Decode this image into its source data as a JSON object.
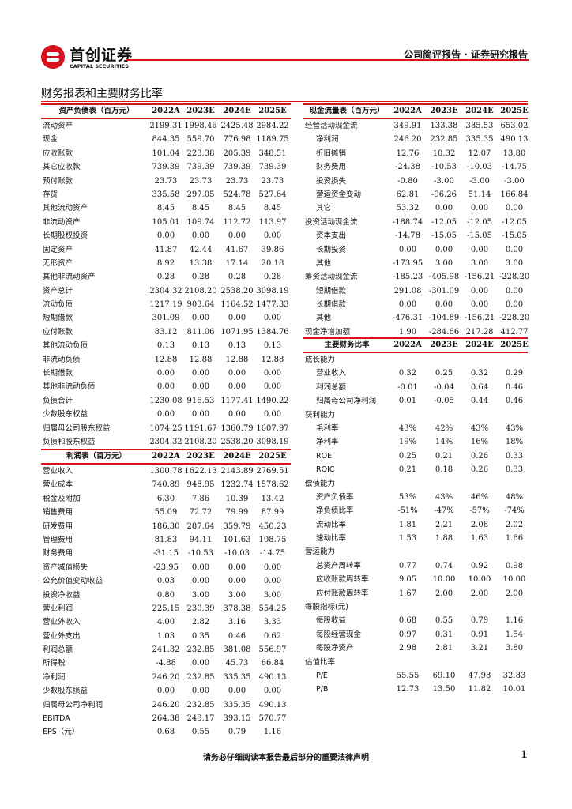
{
  "header": {
    "logo_cn": "首创证券",
    "logo_en": "CAPITAL SECURITIES",
    "report_type": "公司简评报告 · 证券研究报告",
    "accent_color": "#d7121b"
  },
  "section_title": "财务报表和主要财务比率",
  "tables": {
    "balance": {
      "header": [
        "资产负债表（百万元）",
        "2022A",
        "2023E",
        "2024E",
        "2025E"
      ],
      "rows": [
        [
          "流动资产",
          "2199.31",
          "1998.46",
          "2425.48",
          "2984.22"
        ],
        [
          "现金",
          "844.35",
          "559.70",
          "776.98",
          "1189.75"
        ],
        [
          "应收账款",
          "101.04",
          "223.38",
          "205.39",
          "348.51"
        ],
        [
          "其它应收款",
          "739.39",
          "739.39",
          "739.39",
          "739.39"
        ],
        [
          "预付账款",
          "23.73",
          "23.73",
          "23.73",
          "23.73"
        ],
        [
          "存货",
          "335.58",
          "297.05",
          "524.78",
          "527.64"
        ],
        [
          "其他流动资产",
          "8.45",
          "8.45",
          "8.45",
          "8.45"
        ],
        [
          "非流动资产",
          "105.01",
          "109.74",
          "112.72",
          "113.97"
        ],
        [
          "长期股权投资",
          "0.00",
          "0.00",
          "0.00",
          "0.00"
        ],
        [
          "固定资产",
          "41.87",
          "42.44",
          "41.67",
          "39.86"
        ],
        [
          "无形资产",
          "8.92",
          "13.38",
          "17.14",
          "20.18"
        ],
        [
          "其他非流动资产",
          "0.28",
          "0.28",
          "0.28",
          "0.28"
        ],
        [
          "资产总计",
          "2304.32",
          "2108.20",
          "2538.20",
          "3098.19"
        ],
        [
          "流动负债",
          "1217.19",
          "903.64",
          "1164.52",
          "1477.33"
        ],
        [
          "短期借款",
          "301.09",
          "0.00",
          "0.00",
          "0.00"
        ],
        [
          "应付账款",
          "83.12",
          "811.06",
          "1071.95",
          "1384.76"
        ],
        [
          "其他流动负债",
          "0.13",
          "0.13",
          "0.13",
          "0.13"
        ],
        [
          "非流动负债",
          "12.88",
          "12.88",
          "12.88",
          "12.88"
        ],
        [
          "长期借款",
          "0.00",
          "0.00",
          "0.00",
          "0.00"
        ],
        [
          "其他非流动负债",
          "0.00",
          "0.00",
          "0.00",
          "0.00"
        ],
        [
          "负债合计",
          "1230.08",
          "916.53",
          "1177.41",
          "1490.22"
        ],
        [
          "少数股东权益",
          "0.00",
          "0.00",
          "0.00",
          "0.00"
        ],
        [
          "归属母公司股东权益",
          "1074.25",
          "1191.67",
          "1360.79",
          "1607.97"
        ],
        [
          "负债和股东权益",
          "2304.32",
          "2108.20",
          "2538.20",
          "3098.19"
        ]
      ]
    },
    "income": {
      "header": [
        "利润表（百万元）",
        "2022A",
        "2023E",
        "2024E",
        "2025E"
      ],
      "rows": [
        [
          "营业收入",
          "1300.78",
          "1622.13",
          "2143.89",
          "2769.51"
        ],
        [
          "营业成本",
          "740.89",
          "948.95",
          "1232.74",
          "1578.62"
        ],
        [
          "税金及附加",
          "6.30",
          "7.86",
          "10.39",
          "13.42"
        ],
        [
          "销售费用",
          "55.09",
          "72.72",
          "79.99",
          "87.99"
        ],
        [
          "研发费用",
          "186.30",
          "287.64",
          "359.79",
          "450.23"
        ],
        [
          "管理费用",
          "81.83",
          "94.11",
          "101.63",
          "108.75"
        ],
        [
          "财务费用",
          "-31.15",
          "-10.53",
          "-10.03",
          "-14.75"
        ],
        [
          "资产减值损失",
          "-23.95",
          "0.00",
          "0.00",
          "0.00"
        ],
        [
          "公允价值变动收益",
          "0.03",
          "0.00",
          "0.00",
          "0.00"
        ],
        [
          "投资净收益",
          "0.80",
          "3.00",
          "3.00",
          "3.00"
        ],
        [
          "营业利润",
          "225.15",
          "230.39",
          "378.38",
          "554.25"
        ],
        [
          "营业外收入",
          "4.00",
          "2.82",
          "3.16",
          "3.33"
        ],
        [
          "营业外支出",
          "1.03",
          "0.35",
          "0.46",
          "0.62"
        ],
        [
          "利润总额",
          "241.32",
          "232.85",
          "381.08",
          "556.97"
        ],
        [
          "所得税",
          "-4.88",
          "0.00",
          "45.73",
          "66.84"
        ],
        [
          "净利润",
          "246.20",
          "232.85",
          "335.35",
          "490.13"
        ],
        [
          "少数股东损益",
          "0.00",
          "0.00",
          "0.00",
          "0.00"
        ],
        [
          "归属母公司净利润",
          "246.20",
          "232.85",
          "335.35",
          "490.13"
        ],
        [
          "EBITDA",
          "264.38",
          "243.17",
          "393.15",
          "570.77"
        ],
        [
          "EPS（元）",
          "0.68",
          "0.55",
          "0.79",
          "1.16"
        ]
      ]
    },
    "cashflow": {
      "header": [
        "现金流量表（百万元）",
        "2022A",
        "2023E",
        "2024E",
        "2025E"
      ],
      "rows": [
        [
          "经营活动现金流",
          "349.91",
          "133.38",
          "385.53",
          "653.02"
        ],
        [
          "  净利润",
          "246.20",
          "232.85",
          "335.35",
          "490.13"
        ],
        [
          "  折旧摊销",
          "12.76",
          "10.32",
          "12.07",
          "13.80"
        ],
        [
          "  财务费用",
          "-24.38",
          "-10.53",
          "-10.03",
          "-14.75"
        ],
        [
          "  投资损失",
          "-0.80",
          "-3.00",
          "-3.00",
          "-3.00"
        ],
        [
          "  营运资金变动",
          "62.81",
          "-96.26",
          "51.14",
          "166.84"
        ],
        [
          "  其它",
          "53.32",
          "0.00",
          "0.00",
          "0.00"
        ],
        [
          "投资活动现金流",
          "-188.74",
          "-12.05",
          "-12.05",
          "-12.05"
        ],
        [
          "  资本支出",
          "-14.78",
          "-15.05",
          "-15.05",
          "-15.05"
        ],
        [
          "  长期投资",
          "0.00",
          "0.00",
          "0.00",
          "0.00"
        ],
        [
          "  其他",
          "-173.95",
          "3.00",
          "3.00",
          "3.00"
        ],
        [
          "筹资活动现金流",
          "-185.23",
          "-405.98",
          "-156.21",
          "-228.20"
        ],
        [
          "  短期借款",
          "291.08",
          "-301.09",
          "0.00",
          "0.00"
        ],
        [
          "  长期借款",
          "0.00",
          "0.00",
          "0.00",
          "0.00"
        ],
        [
          "  其他",
          "-476.31",
          "-104.89",
          "-156.21",
          "-228.20"
        ],
        [
          "现金净增加额",
          "1.90",
          "-284.66",
          "217.28",
          "412.77"
        ]
      ]
    },
    "ratios": {
      "header": [
        "主要财务比率",
        "2022A",
        "2023E",
        "2024E",
        "2025E"
      ],
      "rows": [
        [
          "成长能力",
          "",
          "",
          "",
          ""
        ],
        [
          "  营业收入",
          "0.32",
          "0.25",
          "0.32",
          "0.29"
        ],
        [
          "  利润总额",
          "-0.01",
          "-0.04",
          "0.64",
          "0.46"
        ],
        [
          "  归属母公司净利润",
          "0.01",
          "-0.05",
          "0.44",
          "0.46"
        ],
        [
          "获利能力",
          "",
          "",
          "",
          ""
        ],
        [
          "  毛利率",
          "43%",
          "42%",
          "43%",
          "43%"
        ],
        [
          "  净利率",
          "19%",
          "14%",
          "16%",
          "18%"
        ],
        [
          "  ROE",
          "0.25",
          "0.21",
          "0.26",
          "0.33"
        ],
        [
          "  ROIC",
          "0.21",
          "0.18",
          "0.26",
          "0.33"
        ],
        [
          "偿债能力",
          "",
          "",
          "",
          ""
        ],
        [
          "  资产负债率",
          "53%",
          "43%",
          "46%",
          "48%"
        ],
        [
          "  净负债比率",
          "-51%",
          "-47%",
          "-57%",
          "-74%"
        ],
        [
          "  流动比率",
          "1.81",
          "2.21",
          "2.08",
          "2.02"
        ],
        [
          "  速动比率",
          "1.53",
          "1.88",
          "1.63",
          "1.66"
        ],
        [
          "营运能力",
          "",
          "",
          "",
          ""
        ],
        [
          "  总资产周转率",
          "0.77",
          "0.74",
          "0.92",
          "0.98"
        ],
        [
          "  应收账款周转率",
          "9.05",
          "10.00",
          "10.00",
          "10.00"
        ],
        [
          "  应付账款周转率",
          "1.67",
          "2.00",
          "2.00",
          "2.00"
        ],
        [
          "每股指标(元)",
          "",
          "",
          "",
          ""
        ],
        [
          "  每股收益",
          "0.68",
          "0.55",
          "0.79",
          "1.16"
        ],
        [
          "  每股经营现金",
          "0.97",
          "0.31",
          "0.91",
          "1.54"
        ],
        [
          "  每股净资产",
          "2.98",
          "2.81",
          "3.21",
          "3.80"
        ],
        [
          "估值比率",
          "",
          "",
          "",
          ""
        ],
        [
          "  P/E",
          "55.55",
          "69.10",
          "47.98",
          "32.83"
        ],
        [
          "  P/B",
          "12.73",
          "13.50",
          "11.82",
          "10.01"
        ]
      ]
    }
  },
  "footer": {
    "disclaimer": "请务必仔细阅读本报告最后部分的重要法律声明",
    "page_number": "1"
  }
}
